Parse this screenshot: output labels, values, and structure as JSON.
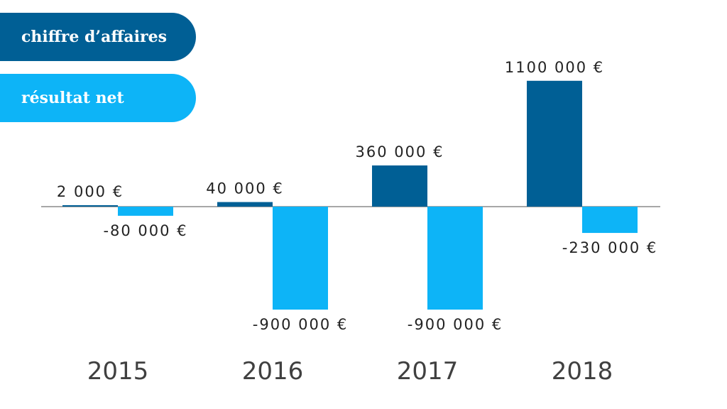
{
  "legend": {
    "revenue_label": "chiffre d’affaires",
    "net_label": "résultat net"
  },
  "colors": {
    "revenue": "#005f95",
    "net": "#0db4f7",
    "baseline": "#8a8a8a"
  },
  "chart_data": {
    "type": "bar",
    "categories": [
      "2015",
      "2016",
      "2017",
      "2018"
    ],
    "series": [
      {
        "name": "chiffre d’affaires",
        "values": [
          2000,
          40000,
          360000,
          1100000
        ],
        "labels": [
          "2 000 €",
          "40 000 €",
          "360 000 €",
          "1100 000 €"
        ]
      },
      {
        "name": "résultat net",
        "values": [
          -80000,
          -900000,
          -900000,
          -230000
        ],
        "labels": [
          "-80 000 €",
          "-900 000 €",
          "-900 000 €",
          "-230 000 €"
        ]
      }
    ],
    "title": "",
    "xlabel": "",
    "ylabel": "",
    "ylim": [
      -900000,
      1100000
    ],
    "grid": false,
    "legend_position": "top-left"
  }
}
